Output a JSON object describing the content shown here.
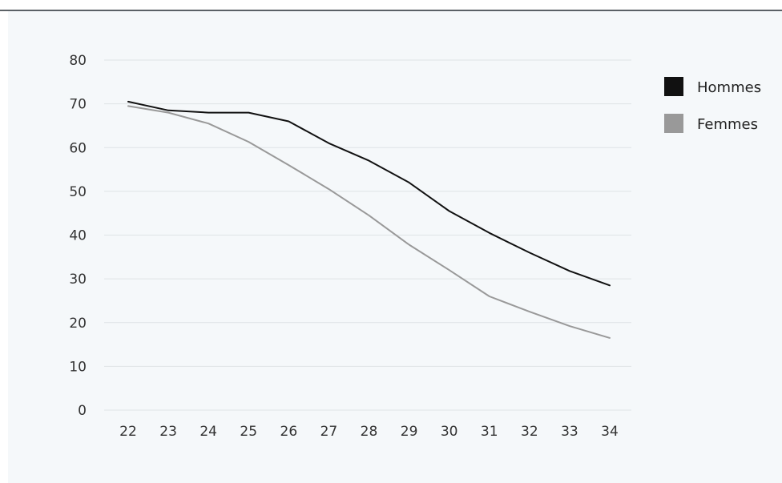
{
  "chart_data": {
    "type": "line",
    "title": "",
    "xlabel": "",
    "ylabel": "",
    "x": [
      22,
      23,
      24,
      25,
      26,
      27,
      28,
      29,
      30,
      31,
      32,
      33,
      34
    ],
    "ylim": [
      0,
      80
    ],
    "yticks": [
      0,
      10,
      20,
      30,
      40,
      50,
      60,
      70,
      80
    ],
    "grid": true,
    "legend_position": "top-right",
    "series": [
      {
        "name": "Hommes",
        "color": "#111111",
        "values": [
          70.5,
          68.5,
          68,
          68,
          66,
          61,
          57,
          52,
          45.5,
          40.5,
          36,
          31.8,
          28.5
        ]
      },
      {
        "name": "Femmes",
        "color": "#999999",
        "values": [
          69.5,
          68,
          65.5,
          61.3,
          56,
          50.5,
          44.5,
          37.8,
          32,
          26,
          22.5,
          19.2,
          16.5
        ]
      }
    ]
  }
}
